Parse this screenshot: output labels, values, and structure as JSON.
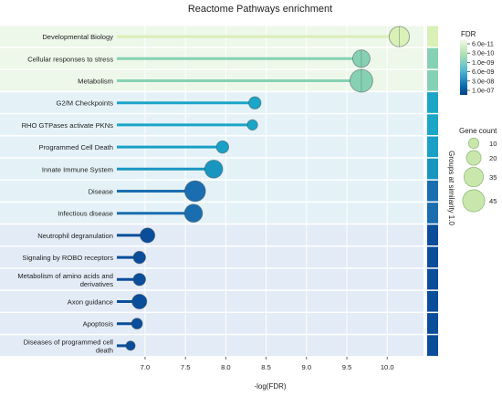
{
  "chart_data": {
    "type": "lollipop",
    "title": "Reactome Pathways enrichment",
    "xlabel": "-log(FDR)",
    "ylabel": "",
    "xlim": [
      6.65,
      10.45
    ],
    "x_ticks": [
      "7.0",
      "7.5",
      "8.0",
      "8.5",
      "9.0",
      "9.5",
      "10.0"
    ],
    "x_tick_values": [
      7.0,
      7.5,
      8.0,
      8.5,
      9.0,
      9.5,
      10.0
    ],
    "grid": true,
    "pathways": [
      {
        "name": "Developmental Biology",
        "neg_log_fdr": 10.15,
        "gene_count": 38,
        "group": 1,
        "color": "#d9f0b6"
      },
      {
        "name": "Cellular responses to stress",
        "neg_log_fdr": 9.68,
        "gene_count": 28,
        "group": 1,
        "color": "#86d1b4"
      },
      {
        "name": "Metabolism",
        "neg_log_fdr": 9.68,
        "gene_count": 48,
        "group": 1,
        "color": "#86d1b4"
      },
      {
        "name": "G2/M Checkpoints",
        "neg_log_fdr": 8.36,
        "gene_count": 14,
        "group": 2,
        "color": "#1ba5c7"
      },
      {
        "name": "RHO GTPases activate PKNs",
        "neg_log_fdr": 8.33,
        "gene_count": 10,
        "group": 2,
        "color": "#1ba5c7"
      },
      {
        "name": "Programmed Cell Death",
        "neg_log_fdr": 7.96,
        "gene_count": 14,
        "group": 2,
        "color": "#19a0c4"
      },
      {
        "name": "Innate Immune System",
        "neg_log_fdr": 7.85,
        "gene_count": 30,
        "group": 2,
        "color": "#1996c0"
      },
      {
        "name": "Disease",
        "neg_log_fdr": 7.62,
        "gene_count": 40,
        "group": 2,
        "color": "#1a6eaf"
      },
      {
        "name": "Infectious disease",
        "neg_log_fdr": 7.6,
        "gene_count": 30,
        "group": 2,
        "color": "#1a6eaf"
      },
      {
        "name": "Neutrophil degranulation",
        "neg_log_fdr": 7.03,
        "gene_count": 20,
        "group": 3,
        "color": "#0a4d9a"
      },
      {
        "name": "Signaling by ROBO receptors",
        "neg_log_fdr": 6.93,
        "gene_count": 14,
        "group": 3,
        "color": "#0a4d9a"
      },
      {
        "name": "Metabolism of amino acids and derivatives",
        "neg_log_fdr": 6.93,
        "gene_count": 14,
        "group": 3,
        "color": "#0a4d9a"
      },
      {
        "name": "Axon guidance",
        "neg_log_fdr": 6.93,
        "gene_count": 20,
        "group": 3,
        "color": "#0a4d9a"
      },
      {
        "name": "Apoptosis",
        "neg_log_fdr": 6.9,
        "gene_count": 11,
        "group": 3,
        "color": "#0a4d9a"
      },
      {
        "name": "Diseases of programmed cell death",
        "neg_log_fdr": 6.82,
        "gene_count": 8,
        "group": 3,
        "color": "#0a4d9a"
      }
    ],
    "group_backgrounds": [
      "#edf7ea",
      "#e4f2f8",
      "#e3ebf6"
    ],
    "group_axis_label": "Groups at similarity 1.0",
    "fdr_legend": {
      "title": "FDR",
      "labels": [
        "6.0e-11",
        "3.0e-10",
        "1.0e-09",
        "6.0e-09",
        "3.0e-08",
        "1.0e-07"
      ],
      "colors": [
        "#f0f9e8",
        "#ccebc5",
        "#a8ddb5",
        "#7bccc4",
        "#4eb3d3",
        "#2b8cbe",
        "#0868ac",
        "#084081"
      ]
    },
    "size_legend": {
      "title": "Gene count",
      "values": [
        10,
        20,
        35,
        45
      ],
      "labels": [
        "10",
        "20",
        "35",
        "45"
      ]
    }
  }
}
